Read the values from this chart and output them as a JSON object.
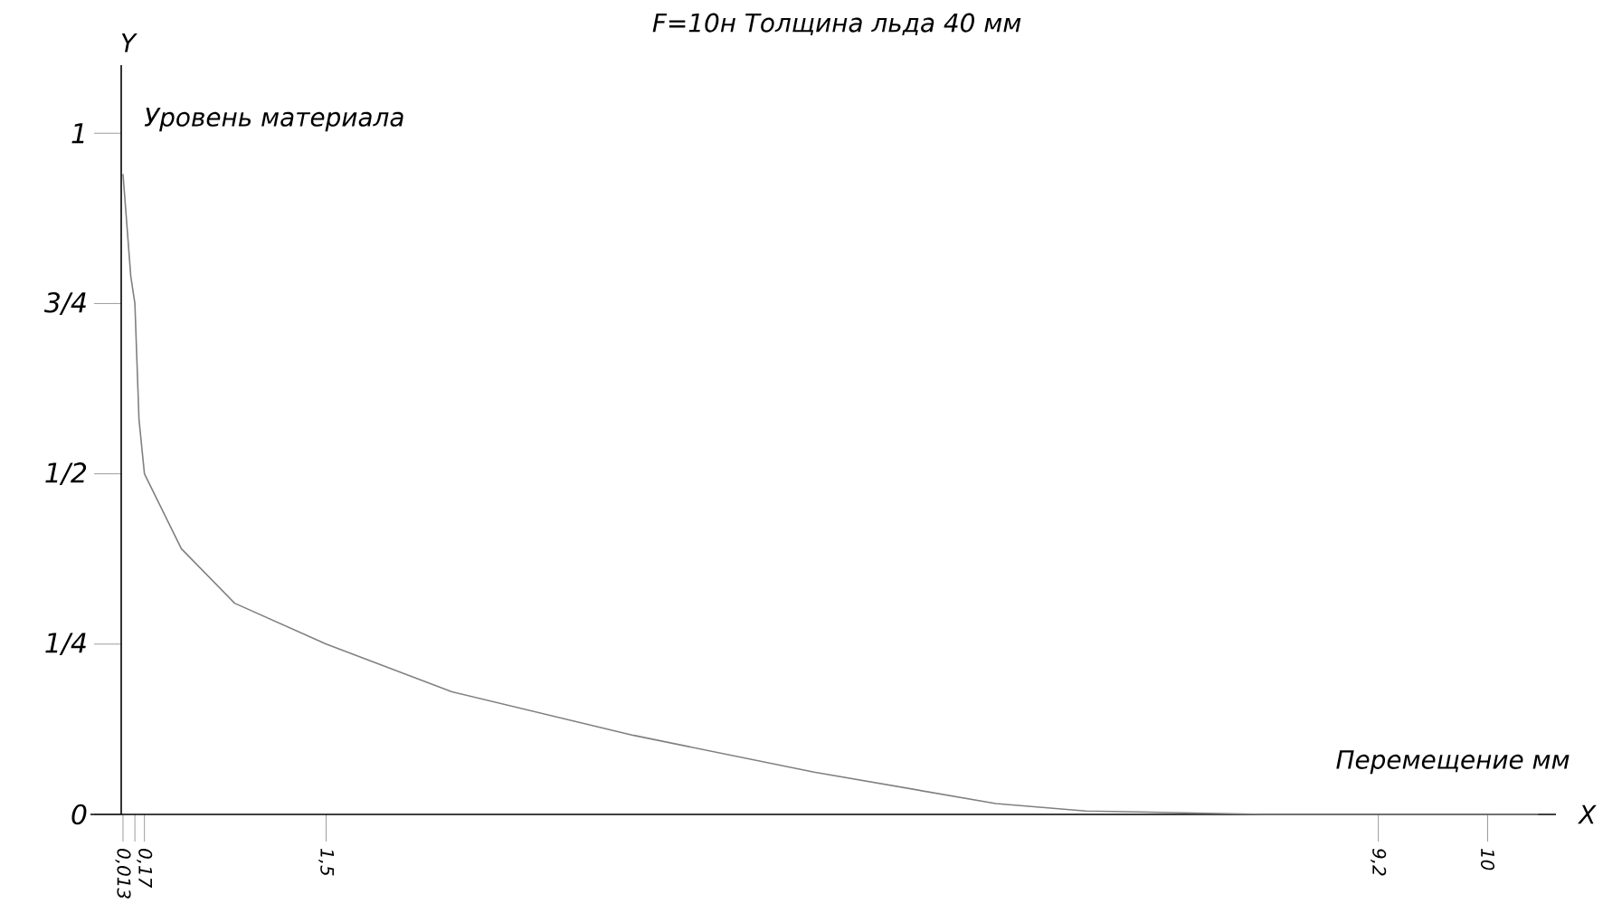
{
  "chart_data": {
    "type": "line",
    "title": "F=10н Толщина льда 40 мм",
    "xlabel": "Перемещение мм",
    "ylabel": "Уровень материала",
    "annotations": [
      "Y",
      "X"
    ],
    "x": [
      0.013,
      0.07,
      0.1,
      0.13,
      0.17,
      0.44,
      0.83,
      1.5,
      2.42,
      3.75,
      5.07,
      6.4,
      7.06,
      8.38,
      10.37
    ],
    "values": [
      0.94,
      0.79,
      0.75,
      0.58,
      0.5,
      0.39,
      0.31,
      0.25,
      0.18,
      0.116,
      0.062,
      0.016,
      0.005,
      0,
      0
    ],
    "color": "#808080",
    "xlim": [
      -0.225,
      10.5
    ],
    "ylim": [
      0,
      1.1
    ],
    "xticks": [
      {
        "value": 0.013,
        "label": "0,013"
      },
      {
        "value": 0.1,
        "label": null
      },
      {
        "value": 0.17,
        "label": "0,17"
      },
      {
        "value": 1.5,
        "label": "1,5"
      },
      {
        "value": 9.2,
        "label": "9,2"
      },
      10
    ],
    "yticks": [
      0,
      {
        "value": 0.25,
        "label": "1/4"
      },
      {
        "value": 0.5,
        "label": "1/2"
      },
      {
        "value": 0.75,
        "label": "3/4"
      },
      1
    ]
  }
}
